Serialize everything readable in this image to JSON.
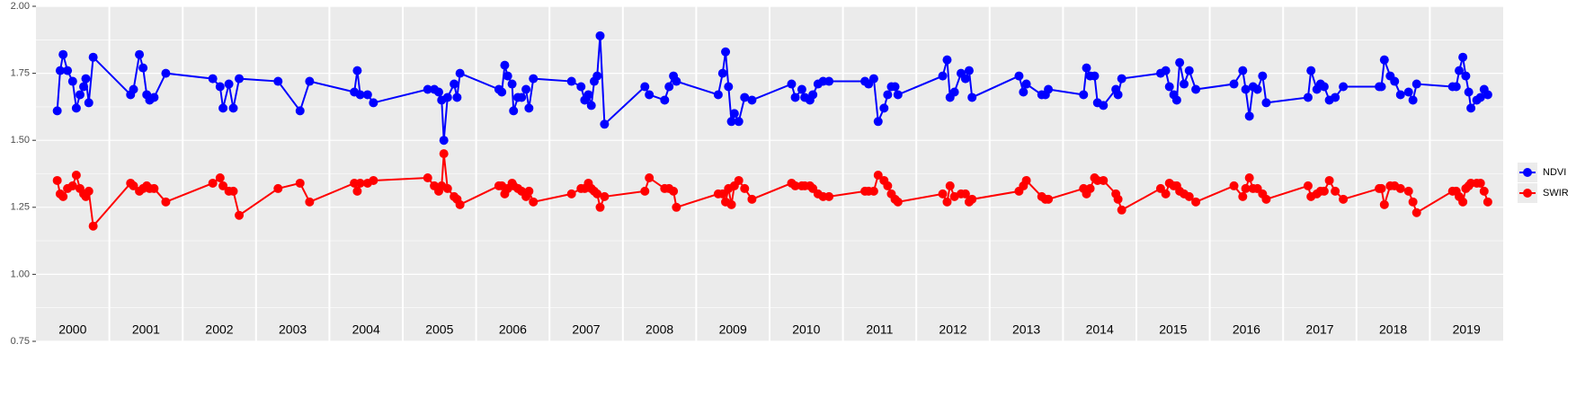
{
  "chart_data": {
    "type": "line",
    "x": [
      2000.29,
      2000.33,
      2000.37,
      2000.43,
      2000.5,
      2000.55,
      2000.6,
      2000.65,
      2000.68,
      2000.72,
      2000.78,
      2001.29,
      2001.33,
      2001.41,
      2001.46,
      2001.51,
      2001.55,
      2001.61,
      2001.77,
      2002.41,
      2002.51,
      2002.55,
      2002.63,
      2002.69,
      2002.77,
      2003.3,
      2003.6,
      2003.73,
      2004.34,
      2004.38,
      2004.42,
      2004.52,
      2004.6,
      2005.34,
      2005.43,
      2005.49,
      2005.53,
      2005.56,
      2005.61,
      2005.7,
      2005.74,
      2005.78,
      2006.31,
      2006.35,
      2006.39,
      2006.43,
      2006.49,
      2006.51,
      2006.57,
      2006.62,
      2006.68,
      2006.72,
      2006.78,
      2007.3,
      2007.43,
      2007.48,
      2007.53,
      2007.57,
      2007.61,
      2007.65,
      2007.69,
      2007.75,
      2008.3,
      2008.36,
      2008.57,
      2008.63,
      2008.69,
      2008.73,
      2009.3,
      2009.36,
      2009.4,
      2009.44,
      2009.48,
      2009.52,
      2009.58,
      2009.66,
      2009.76,
      2010.3,
      2010.35,
      2010.44,
      2010.48,
      2010.55,
      2010.59,
      2010.66,
      2010.73,
      2010.81,
      2011.3,
      2011.35,
      2011.42,
      2011.48,
      2011.56,
      2011.61,
      2011.66,
      2011.71,
      2011.75,
      2012.36,
      2012.42,
      2012.46,
      2012.52,
      2012.61,
      2012.67,
      2012.72,
      2012.76,
      2013.4,
      2013.46,
      2013.5,
      2013.71,
      2013.76,
      2013.8,
      2014.28,
      2014.32,
      2014.37,
      2014.43,
      2014.47,
      2014.55,
      2014.72,
      2014.75,
      2014.8,
      2015.33,
      2015.4,
      2015.45,
      2015.51,
      2015.55,
      2015.59,
      2015.65,
      2015.72,
      2015.81,
      2016.33,
      2016.45,
      2016.49,
      2016.54,
      2016.59,
      2016.65,
      2016.72,
      2016.77,
      2017.34,
      2017.38,
      2017.46,
      2017.51,
      2017.56,
      2017.63,
      2017.71,
      2017.82,
      2018.31,
      2018.34,
      2018.38,
      2018.46,
      2018.52,
      2018.6,
      2018.71,
      2018.77,
      2018.82,
      2019.31,
      2019.36,
      2019.4,
      2019.45,
      2019.49,
      2019.53,
      2019.56,
      2019.64,
      2019.69,
      2019.74,
      2019.79
    ],
    "series": [
      {
        "name": "NDVI",
        "color": "#0000ff",
        "values": [
          1.61,
          1.76,
          1.82,
          1.76,
          1.72,
          1.62,
          1.67,
          1.7,
          1.73,
          1.64,
          1.81,
          1.67,
          1.69,
          1.82,
          1.77,
          1.67,
          1.65,
          1.66,
          1.75,
          1.73,
          1.7,
          1.62,
          1.71,
          1.62,
          1.73,
          1.72,
          1.61,
          1.72,
          1.68,
          1.76,
          1.67,
          1.67,
          1.64,
          1.69,
          1.69,
          1.68,
          1.65,
          1.5,
          1.66,
          1.71,
          1.66,
          1.75,
          1.69,
          1.68,
          1.78,
          1.74,
          1.71,
          1.61,
          1.66,
          1.66,
          1.69,
          1.62,
          1.73,
          1.72,
          1.7,
          1.65,
          1.67,
          1.63,
          1.72,
          1.74,
          1.89,
          1.56,
          1.7,
          1.67,
          1.65,
          1.7,
          1.74,
          1.72,
          1.67,
          1.75,
          1.83,
          1.7,
          1.57,
          1.6,
          1.57,
          1.66,
          1.65,
          1.71,
          1.66,
          1.69,
          1.66,
          1.65,
          1.67,
          1.71,
          1.72,
          1.72,
          1.72,
          1.71,
          1.73,
          1.57,
          1.62,
          1.67,
          1.7,
          1.7,
          1.67,
          1.74,
          1.8,
          1.66,
          1.68,
          1.75,
          1.73,
          1.76,
          1.66,
          1.74,
          1.68,
          1.71,
          1.67,
          1.67,
          1.69,
          1.67,
          1.77,
          1.74,
          1.74,
          1.64,
          1.63,
          1.69,
          1.67,
          1.73,
          1.75,
          1.76,
          1.7,
          1.67,
          1.65,
          1.79,
          1.71,
          1.76,
          1.69,
          1.71,
          1.76,
          1.69,
          1.59,
          1.7,
          1.69,
          1.74,
          1.64,
          1.66,
          1.76,
          1.69,
          1.71,
          1.7,
          1.65,
          1.66,
          1.7,
          1.7,
          1.7,
          1.8,
          1.74,
          1.72,
          1.67,
          1.68,
          1.65,
          1.71,
          1.7,
          1.7,
          1.76,
          1.81,
          1.74,
          1.68,
          1.62,
          1.65,
          1.66,
          1.69,
          1.67
        ]
      },
      {
        "name": "SWIR",
        "color": "#ff0000",
        "values": [
          1.35,
          1.3,
          1.29,
          1.32,
          1.33,
          1.37,
          1.32,
          1.3,
          1.29,
          1.31,
          1.18,
          1.34,
          1.33,
          1.31,
          1.32,
          1.33,
          1.32,
          1.32,
          1.27,
          1.34,
          1.36,
          1.33,
          1.31,
          1.31,
          1.22,
          1.32,
          1.34,
          1.27,
          1.34,
          1.31,
          1.34,
          1.34,
          1.35,
          1.36,
          1.33,
          1.31,
          1.33,
          1.45,
          1.32,
          1.29,
          1.28,
          1.26,
          1.33,
          1.33,
          1.3,
          1.32,
          1.34,
          1.33,
          1.32,
          1.31,
          1.29,
          1.31,
          1.27,
          1.3,
          1.32,
          1.32,
          1.34,
          1.32,
          1.31,
          1.3,
          1.25,
          1.29,
          1.31,
          1.36,
          1.32,
          1.32,
          1.31,
          1.25,
          1.3,
          1.3,
          1.27,
          1.32,
          1.26,
          1.33,
          1.35,
          1.32,
          1.28,
          1.34,
          1.33,
          1.33,
          1.33,
          1.33,
          1.32,
          1.3,
          1.29,
          1.29,
          1.31,
          1.31,
          1.31,
          1.37,
          1.35,
          1.33,
          1.3,
          1.28,
          1.27,
          1.3,
          1.27,
          1.33,
          1.29,
          1.3,
          1.3,
          1.27,
          1.28,
          1.31,
          1.33,
          1.35,
          1.29,
          1.28,
          1.28,
          1.32,
          1.3,
          1.32,
          1.36,
          1.35,
          1.35,
          1.3,
          1.28,
          1.24,
          1.32,
          1.3,
          1.34,
          1.33,
          1.33,
          1.31,
          1.3,
          1.29,
          1.27,
          1.33,
          1.29,
          1.32,
          1.36,
          1.32,
          1.32,
          1.3,
          1.28,
          1.33,
          1.29,
          1.3,
          1.31,
          1.31,
          1.35,
          1.31,
          1.28,
          1.32,
          1.32,
          1.26,
          1.33,
          1.33,
          1.32,
          1.31,
          1.27,
          1.23,
          1.31,
          1.31,
          1.29,
          1.27,
          1.32,
          1.33,
          1.34,
          1.34,
          1.34,
          1.31,
          1.27
        ]
      }
    ],
    "xlim": [
      2000,
      2020
    ],
    "xticks": [
      {
        "value": 2000.5,
        "label": "2000"
      },
      {
        "value": 2001.5,
        "label": "2001"
      },
      {
        "value": 2002.5,
        "label": "2002"
      },
      {
        "value": 2003.5,
        "label": "2003"
      },
      {
        "value": 2004.5,
        "label": "2004"
      },
      {
        "value": 2005.5,
        "label": "2005"
      },
      {
        "value": 2006.5,
        "label": "2006"
      },
      {
        "value": 2007.5,
        "label": "2007"
      },
      {
        "value": 2008.5,
        "label": "2008"
      },
      {
        "value": 2009.5,
        "label": "2009"
      },
      {
        "value": 2010.5,
        "label": "2010"
      },
      {
        "value": 2011.5,
        "label": "2011"
      },
      {
        "value": 2012.5,
        "label": "2012"
      },
      {
        "value": 2013.5,
        "label": "2013"
      },
      {
        "value": 2014.5,
        "label": "2014"
      },
      {
        "value": 2015.5,
        "label": "2015"
      },
      {
        "value": 2016.5,
        "label": "2016"
      },
      {
        "value": 2017.5,
        "label": "2017"
      },
      {
        "value": 2018.5,
        "label": "2018"
      },
      {
        "value": 2019.5,
        "label": "2019"
      }
    ],
    "xgrid": [
      2001,
      2002,
      2003,
      2004,
      2005,
      2006,
      2007,
      2008,
      2009,
      2010,
      2011,
      2012,
      2013,
      2014,
      2015,
      2016,
      2017,
      2018,
      2019
    ],
    "ylim": [
      0.75,
      2
    ],
    "yticks": [
      0.75,
      {
        "value": 1,
        "label": "1.00"
      },
      1.25,
      {
        "value": 1.5,
        "label": "1.50"
      },
      1.75,
      {
        "value": 2,
        "label": "2.00"
      }
    ],
    "grid": true,
    "legend": "right"
  }
}
